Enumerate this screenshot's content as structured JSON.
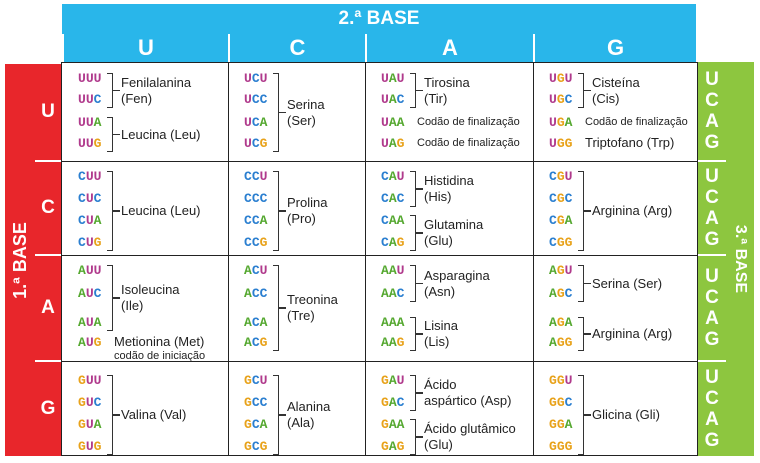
{
  "second_base_title": "2.ª BASE",
  "first_base_title": "1.ª BASE",
  "third_base_title": "3.ª BASE",
  "bases": [
    "U",
    "C",
    "A",
    "G"
  ],
  "third_base_letters": [
    "U",
    "C",
    "A",
    "G"
  ],
  "cells": [
    [
      {
        "codons": [
          "UUU",
          "UUC",
          "UUA",
          "UUG"
        ],
        "groups": [
          {
            "from": 0,
            "to": 1,
            "lines": [
              "Fenilalanina",
              "(Fen)"
            ]
          },
          {
            "from": 2,
            "to": 3,
            "lines": [
              "Leucina (Leu)"
            ]
          }
        ]
      },
      {
        "codons": [
          "UCU",
          "UCC",
          "UCA",
          "UCG"
        ],
        "groups": [
          {
            "from": 0,
            "to": 3,
            "lines": [
              "Serina",
              "(Ser)"
            ]
          }
        ]
      },
      {
        "codons": [
          "UAU",
          "UAC",
          "UAA",
          "UAG"
        ],
        "groups": [
          {
            "from": 0,
            "to": 1,
            "lines": [
              "Tirosina",
              "(Tir)"
            ]
          }
        ],
        "plain": [
          {
            "row": 2,
            "text": "Codão de finalização"
          },
          {
            "row": 3,
            "text": "Codão de finalização"
          }
        ]
      },
      {
        "codons": [
          "UGU",
          "UGC",
          "UGA",
          "UGG"
        ],
        "groups": [
          {
            "from": 0,
            "to": 1,
            "lines": [
              "Cisteína",
              "(Cis)"
            ]
          }
        ],
        "plain": [
          {
            "row": 2,
            "text": "Codão de finalização"
          },
          {
            "row": 3,
            "text": "Triptofano (Trp)"
          }
        ]
      }
    ],
    [
      {
        "codons": [
          "CUU",
          "CUC",
          "CUA",
          "CUG"
        ],
        "groups": [
          {
            "from": 0,
            "to": 3,
            "lines": [
              "Leucina (Leu)"
            ]
          }
        ]
      },
      {
        "codons": [
          "CCU",
          "CCC",
          "CCA",
          "CCG"
        ],
        "groups": [
          {
            "from": 0,
            "to": 3,
            "lines": [
              "Prolina",
              "(Pro)"
            ]
          }
        ]
      },
      {
        "codons": [
          "CAU",
          "CAC",
          "CAA",
          "CAG"
        ],
        "groups": [
          {
            "from": 0,
            "to": 1,
            "lines": [
              "Histidina",
              "(His)"
            ]
          },
          {
            "from": 2,
            "to": 3,
            "lines": [
              "Glutamina",
              "(Glu)"
            ]
          }
        ]
      },
      {
        "codons": [
          "CGU",
          "CGC",
          "CGA",
          "CGG"
        ],
        "groups": [
          {
            "from": 0,
            "to": 3,
            "lines": [
              "Arginina (Arg)"
            ]
          }
        ]
      }
    ],
    [
      {
        "codons": [
          "AUU",
          "AUC",
          "AUA",
          "AUG"
        ],
        "groups": [
          {
            "from": 0,
            "to": 2,
            "lines": [
              "Isoleucina",
              "(Ile)"
            ]
          }
        ],
        "plain": [
          {
            "row": 3,
            "text": "Metionina (Met)",
            "sub": "codão de iniciação"
          }
        ]
      },
      {
        "codons": [
          "ACU",
          "ACC",
          "ACA",
          "ACG"
        ],
        "groups": [
          {
            "from": 0,
            "to": 3,
            "lines": [
              "Treonina",
              "(Tre)"
            ]
          }
        ]
      },
      {
        "codons": [
          "AAU",
          "AAC",
          "AAA",
          "AAG"
        ],
        "groups": [
          {
            "from": 0,
            "to": 1,
            "lines": [
              "Asparagina",
              "(Asn)"
            ]
          },
          {
            "from": 2,
            "to": 3,
            "lines": [
              "Lisina",
              "(Lis)"
            ]
          }
        ]
      },
      {
        "codons": [
          "AGU",
          "AGC",
          "AGA",
          "AGG"
        ],
        "groups": [
          {
            "from": 0,
            "to": 1,
            "lines": [
              "Serina (Ser)"
            ]
          },
          {
            "from": 2,
            "to": 3,
            "lines": [
              "Arginina (Arg)"
            ]
          }
        ]
      }
    ],
    [
      {
        "codons": [
          "GUU",
          "GUC",
          "GUA",
          "GUG"
        ],
        "groups": [
          {
            "from": 0,
            "to": 3,
            "lines": [
              "Valina (Val)"
            ]
          }
        ]
      },
      {
        "codons": [
          "GCU",
          "GCC",
          "GCA",
          "GCG"
        ],
        "groups": [
          {
            "from": 0,
            "to": 3,
            "lines": [
              "Alanina",
              "(Ala)"
            ]
          }
        ]
      },
      {
        "codons": [
          "GAU",
          "GAC",
          "GAA",
          "GAG"
        ],
        "groups": [
          {
            "from": 0,
            "to": 1,
            "lines": [
              "Ácido",
              "aspártico (Asp)"
            ]
          },
          {
            "from": 2,
            "to": 3,
            "lines": [
              "Ácido glutâmico",
              "(Glu)"
            ]
          }
        ]
      },
      {
        "codons": [
          "GGU",
          "GGC",
          "GGA",
          "GGG"
        ],
        "groups": [
          {
            "from": 0,
            "to": 3,
            "lines": [
              "Glicina (Gli)"
            ]
          }
        ]
      }
    ]
  ],
  "colors": {
    "U": "#b03a8c",
    "C": "#2b7fd0",
    "A": "#55a830",
    "G": "#e8a21a",
    "header": "#29b6ea",
    "first": "#e8262b",
    "third": "#8dc63f"
  }
}
